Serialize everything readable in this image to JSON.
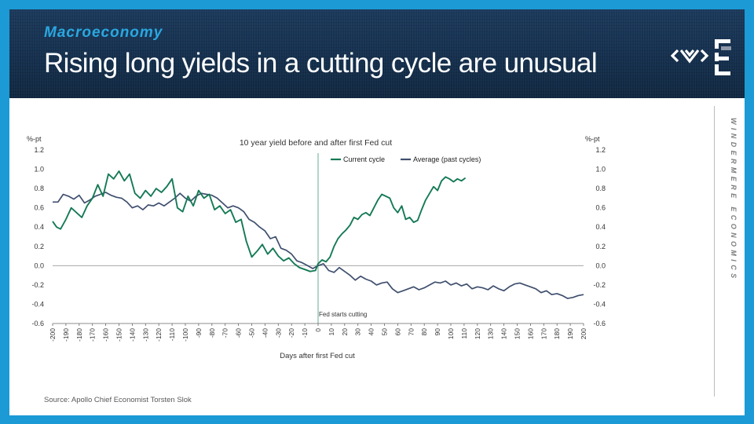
{
  "header": {
    "kicker": "Macroeconomy",
    "title": "Rising long yields in a cutting cycle are unusual"
  },
  "sidebar": {
    "brand_vertical": "WINDERMERE ECONOMICS"
  },
  "footer": {
    "source": "Source: Apollo Chief Economist Torsten Slok"
  },
  "colors": {
    "current": "#157a55",
    "average": "#3f4f6e",
    "vline": "#3d9a73",
    "blue": "#1b9ad6",
    "header": "#16304f"
  },
  "icons": {
    "logo": "windermere-diamond-logo",
    "mark": "windermere-e-mark"
  },
  "chart_data": {
    "type": "line",
    "title": "10 year yield before and after first Fed cut",
    "xlabel": "Days after first Fed cut",
    "ylabel_left": "%-pt",
    "ylabel_right": "%-pt",
    "xlim": [
      -200,
      200
    ],
    "ylim": [
      -0.6,
      1.2
    ],
    "y_ticks": [
      1.2,
      1.0,
      0.8,
      0.6,
      0.4,
      0.2,
      0.0,
      -0.2,
      -0.4,
      -0.6
    ],
    "y_tick_labels": [
      "1.2",
      "1.0",
      "0.8",
      "0.6",
      "0.4",
      "0.2",
      "0.0",
      "-0.2",
      "-0.4",
      "-0.6"
    ],
    "x_ticks": [
      -200,
      -190,
      -180,
      -170,
      -160,
      -150,
      -140,
      -130,
      -120,
      -110,
      -100,
      -90,
      -80,
      -70,
      -60,
      -50,
      -40,
      -30,
      -20,
      -10,
      0,
      10,
      20,
      30,
      40,
      50,
      60,
      70,
      80,
      90,
      100,
      110,
      120,
      130,
      140,
      150,
      160,
      170,
      180,
      190,
      200
    ],
    "x_tick_labels": [
      "-200",
      "-190",
      "-180",
      "-170",
      "-160",
      "-150",
      "-140",
      "-130",
      "-120",
      "-110",
      "-100",
      "-90",
      "-80",
      "-70",
      "-60",
      "-50",
      "-40",
      "-30",
      "-20",
      "-10",
      "0",
      "10",
      "20",
      "30",
      "40",
      "50",
      "60",
      "70",
      "80",
      "90",
      "100",
      "110",
      "120",
      "130",
      "140",
      "150",
      "160",
      "170",
      "180",
      "190",
      "200"
    ],
    "annotation": {
      "text": "Fed starts cutting",
      "x": 0
    },
    "series": [
      {
        "name": "Current cycle",
        "x": [
          -200,
          -197,
          -194,
          -190,
          -186,
          -182,
          -178,
          -174,
          -170,
          -166,
          -162,
          -158,
          -154,
          -150,
          -146,
          -142,
          -138,
          -134,
          -130,
          -126,
          -122,
          -118,
          -114,
          -110,
          -106,
          -102,
          -98,
          -94,
          -90,
          -86,
          -82,
          -78,
          -74,
          -70,
          -66,
          -62,
          -58,
          -54,
          -50,
          -46,
          -42,
          -38,
          -34,
          -30,
          -26,
          -22,
          -18,
          -14,
          -10,
          -6,
          -2,
          0,
          3,
          6,
          9,
          12,
          15,
          18,
          21,
          24,
          27,
          30,
          33,
          36,
          39,
          42,
          45,
          48,
          51,
          54,
          57,
          60,
          63,
          66,
          69,
          72,
          75,
          78,
          81,
          84,
          87,
          90,
          93,
          96,
          99,
          102,
          105,
          108,
          111
        ],
        "y": [
          0.46,
          0.4,
          0.38,
          0.48,
          0.6,
          0.55,
          0.5,
          0.62,
          0.7,
          0.84,
          0.72,
          0.95,
          0.9,
          0.98,
          0.88,
          0.95,
          0.75,
          0.7,
          0.78,
          0.72,
          0.8,
          0.76,
          0.82,
          0.9,
          0.6,
          0.56,
          0.72,
          0.62,
          0.78,
          0.7,
          0.74,
          0.58,
          0.62,
          0.54,
          0.58,
          0.45,
          0.48,
          0.25,
          0.09,
          0.15,
          0.22,
          0.12,
          0.18,
          0.1,
          0.05,
          0.08,
          0.02,
          -0.02,
          -0.04,
          -0.06,
          -0.05,
          0.02,
          0.06,
          0.04,
          0.09,
          0.2,
          0.28,
          0.33,
          0.37,
          0.42,
          0.5,
          0.48,
          0.53,
          0.55,
          0.52,
          0.6,
          0.68,
          0.74,
          0.72,
          0.7,
          0.6,
          0.55,
          0.62,
          0.48,
          0.5,
          0.45,
          0.47,
          0.58,
          0.68,
          0.75,
          0.82,
          0.78,
          0.88,
          0.92,
          0.9,
          0.87,
          0.9,
          0.88,
          0.91
        ]
      },
      {
        "name": "Average (past cycles)",
        "x": [
          -200,
          -196,
          -192,
          -188,
          -184,
          -180,
          -176,
          -172,
          -168,
          -164,
          -160,
          -156,
          -152,
          -148,
          -144,
          -140,
          -136,
          -132,
          -128,
          -124,
          -120,
          -116,
          -112,
          -108,
          -104,
          -100,
          -96,
          -92,
          -88,
          -84,
          -80,
          -76,
          -72,
          -68,
          -64,
          -60,
          -56,
          -52,
          -48,
          -44,
          -40,
          -36,
          -32,
          -28,
          -24,
          -20,
          -16,
          -12,
          -8,
          -4,
          0,
          4,
          8,
          12,
          16,
          20,
          24,
          28,
          32,
          36,
          40,
          44,
          48,
          52,
          56,
          60,
          64,
          68,
          72,
          76,
          80,
          84,
          88,
          92,
          96,
          100,
          104,
          108,
          112,
          116,
          120,
          124,
          128,
          132,
          136,
          140,
          144,
          148,
          152,
          156,
          160,
          164,
          168,
          172,
          176,
          180,
          184,
          188,
          192,
          196,
          200
        ],
        "y": [
          0.66,
          0.66,
          0.74,
          0.72,
          0.69,
          0.73,
          0.65,
          0.68,
          0.72,
          0.74,
          0.76,
          0.73,
          0.71,
          0.7,
          0.66,
          0.6,
          0.62,
          0.58,
          0.63,
          0.62,
          0.65,
          0.62,
          0.66,
          0.7,
          0.75,
          0.7,
          0.67,
          0.72,
          0.75,
          0.74,
          0.73,
          0.7,
          0.65,
          0.6,
          0.62,
          0.6,
          0.56,
          0.48,
          0.45,
          0.4,
          0.36,
          0.28,
          0.3,
          0.18,
          0.16,
          0.12,
          0.05,
          0.03,
          0.0,
          -0.03,
          0.0,
          0.02,
          -0.05,
          -0.07,
          -0.02,
          -0.06,
          -0.1,
          -0.15,
          -0.11,
          -0.14,
          -0.16,
          -0.2,
          -0.18,
          -0.17,
          -0.24,
          -0.28,
          -0.26,
          -0.24,
          -0.22,
          -0.25,
          -0.23,
          -0.2,
          -0.17,
          -0.18,
          -0.16,
          -0.2,
          -0.18,
          -0.21,
          -0.19,
          -0.24,
          -0.22,
          -0.23,
          -0.25,
          -0.21,
          -0.24,
          -0.26,
          -0.22,
          -0.19,
          -0.18,
          -0.2,
          -0.22,
          -0.24,
          -0.28,
          -0.26,
          -0.3,
          -0.29,
          -0.31,
          -0.34,
          -0.33,
          -0.31,
          -0.3
        ]
      }
    ]
  }
}
